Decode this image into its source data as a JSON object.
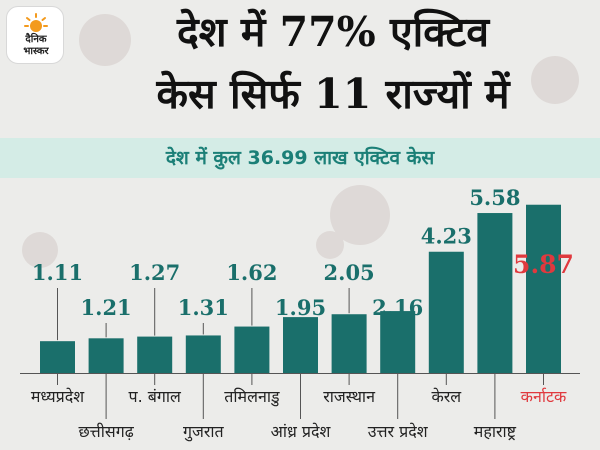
{
  "logo": {
    "line1": "दैनिक",
    "line2": "भास्कर"
  },
  "headline": {
    "line1": "देश में 77% एक्टिव",
    "line2": "केस सिर्फ 11 राज्यों में"
  },
  "subheadline": "देश में कुल 36.99 लाख एक्टिव केस",
  "colors": {
    "bar": "#1a6f6b",
    "value": "#1a6f6b",
    "highlight": "#e0393e",
    "label": "#222222",
    "banner_bg": "#d4ece6",
    "background": "#ececea"
  },
  "chart_data": {
    "type": "bar",
    "categories": [
      "मध्यप्रदेश",
      "छत्तीसगढ़",
      "प. बंगाल",
      "गुजरात",
      "तमिलनाडु",
      "आंध्र प्रदेश",
      "राजस्थान",
      "उत्तर प्रदेश",
      "केरल",
      "महाराष्ट्र",
      "कर्नाटक"
    ],
    "values": [
      1.11,
      1.21,
      1.27,
      1.31,
      1.62,
      1.95,
      2.05,
      2.16,
      4.23,
      5.58,
      5.87
    ],
    "value_labels": [
      "1.11",
      "1.21",
      "1.27",
      "1.31",
      "1.62",
      "1.95",
      "2.05",
      "2.16",
      "4.23",
      "5.58",
      "5.87"
    ],
    "highlight_index": 10,
    "title": "",
    "xlabel": "",
    "ylabel": "",
    "ylim": [
      0,
      6
    ],
    "grid": false,
    "legend": "none"
  }
}
